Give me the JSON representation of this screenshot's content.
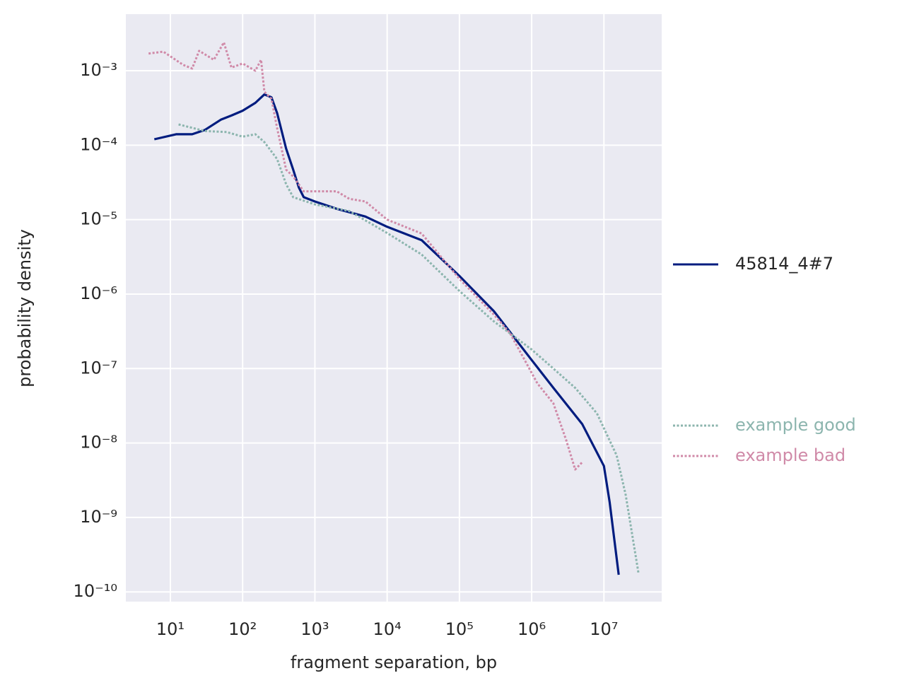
{
  "chart_data": {
    "type": "line",
    "xlabel": "fragment separation, bp",
    "ylabel": "probability density",
    "xscale": "log",
    "yscale": "log",
    "grid": true,
    "xlim": [
      2.42,
      63000000
    ],
    "ylim": [
      7.4e-11,
      0.00575
    ],
    "xticks": [
      {
        "value": 10,
        "label": "10¹"
      },
      {
        "value": 100,
        "label": "10²"
      },
      {
        "value": 1000,
        "label": "10³"
      },
      {
        "value": 10000,
        "label": "10⁴"
      },
      {
        "value": 100000,
        "label": "10⁵"
      },
      {
        "value": 1000000,
        "label": "10⁶"
      },
      {
        "value": 10000000,
        "label": "10⁷"
      }
    ],
    "yticks": [
      {
        "value": 0.001,
        "label": "10⁻³"
      },
      {
        "value": 0.0001,
        "label": "10⁻⁴"
      },
      {
        "value": 1e-05,
        "label": "10⁻⁵"
      },
      {
        "value": 1e-06,
        "label": "10⁻⁶"
      },
      {
        "value": 1e-07,
        "label": "10⁻⁷"
      },
      {
        "value": 1e-08,
        "label": "10⁻⁸"
      },
      {
        "value": 1e-09,
        "label": "10⁻⁹"
      },
      {
        "value": 1e-10,
        "label": "10⁻¹⁰"
      }
    ],
    "series": [
      {
        "name": "45814_4#7",
        "color": "#001c7f",
        "style": "solid",
        "x": [
          6,
          12,
          20,
          30,
          50,
          70,
          100,
          150,
          200,
          250,
          300,
          400,
          500,
          600,
          700,
          1000,
          2000,
          5000,
          10000,
          30000,
          100000,
          300000,
          1000000,
          2000000,
          5000000,
          10000000,
          12000000,
          16000000
        ],
        "values": [
          0.00012,
          0.00014,
          0.00014,
          0.00016,
          0.00022,
          0.00025,
          0.00029,
          0.00037,
          0.00048,
          0.00044,
          0.00027,
          9e-05,
          4.7e-05,
          2.7e-05,
          2e-05,
          1.75e-05,
          1.4e-05,
          1.1e-05,
          8e-06,
          5.3e-06,
          1.75e-06,
          5.9e-07,
          1.3e-07,
          5.5e-08,
          1.8e-08,
          4.9e-09,
          1.6e-09,
          1.7e-10
        ]
      },
      {
        "name": "example good",
        "color": "#8cb5ae",
        "style": "dotted",
        "x": [
          13,
          30,
          60,
          100,
          150,
          200,
          300,
          400,
          500,
          1000,
          3000,
          10000,
          30000,
          100000,
          300000,
          1000000,
          2000000,
          4000000,
          8000000,
          15000000,
          20000000,
          30000000
        ],
        "values": [
          0.00019,
          0.000155,
          0.00015,
          0.00013,
          0.00014,
          0.00011,
          6.5e-05,
          3e-05,
          2e-05,
          1.6e-05,
          1.3e-05,
          6.6e-06,
          3.4e-06,
          1.1e-06,
          4.3e-07,
          1.8e-07,
          1e-07,
          5.5e-08,
          2.5e-08,
          6.8e-09,
          2e-09,
          1.8e-10
        ]
      },
      {
        "name": "example bad",
        "color": "#d08aa8",
        "style": "dotted",
        "x": [
          5,
          8,
          15,
          20,
          25,
          40,
          55,
          70,
          100,
          150,
          180,
          200,
          250,
          300,
          400,
          500,
          700,
          1000,
          2000,
          3000,
          5000,
          10000,
          30000,
          100000,
          300000,
          500000,
          800000,
          1200000,
          2000000,
          3000000,
          4000000,
          5000000
        ],
        "values": [
          0.0017,
          0.0018,
          0.0012,
          0.00107,
          0.00185,
          0.0014,
          0.0024,
          0.0011,
          0.00125,
          0.001,
          0.0014,
          0.00052,
          0.00042,
          0.00017,
          4.7e-05,
          3.8e-05,
          2.4e-05,
          2.4e-05,
          2.4e-05,
          1.9e-05,
          1.75e-05,
          1e-05,
          6.5e-06,
          1.6e-06,
          5.3e-07,
          3e-07,
          1.3e-07,
          6.3e-08,
          3.4e-08,
          1.1e-08,
          4.4e-09,
          5.5e-09
        ]
      }
    ]
  }
}
